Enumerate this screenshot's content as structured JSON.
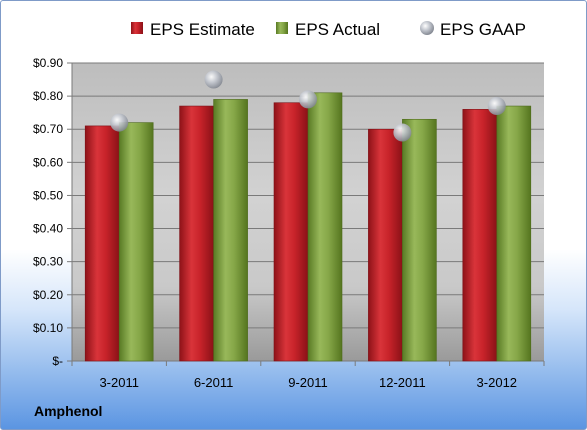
{
  "company": "Amphenol",
  "chart_data": {
    "type": "bar",
    "categories": [
      "3-2011",
      "6-2011",
      "9-2011",
      "12-2011",
      "3-2012"
    ],
    "series": [
      {
        "name": "EPS Estimate",
        "type": "bar",
        "color": "#c0232b",
        "values": [
          0.71,
          0.77,
          0.78,
          0.7,
          0.76
        ]
      },
      {
        "name": "EPS Actual",
        "type": "bar",
        "color": "#7fa03a",
        "values": [
          0.72,
          0.79,
          0.81,
          0.73,
          0.77
        ]
      },
      {
        "name": "EPS GAAP",
        "type": "scatter",
        "color": "#c8cdd6",
        "values": [
          0.72,
          0.85,
          0.79,
          0.69,
          0.77
        ]
      }
    ],
    "y_tick_labels": [
      "$-",
      "$0.10",
      "$0.20",
      "$0.30",
      "$0.40",
      "$0.50",
      "$0.60",
      "$0.70",
      "$0.80",
      "$0.90"
    ],
    "ylim": [
      0,
      0.9
    ],
    "grid": true,
    "legend_position": "top"
  }
}
